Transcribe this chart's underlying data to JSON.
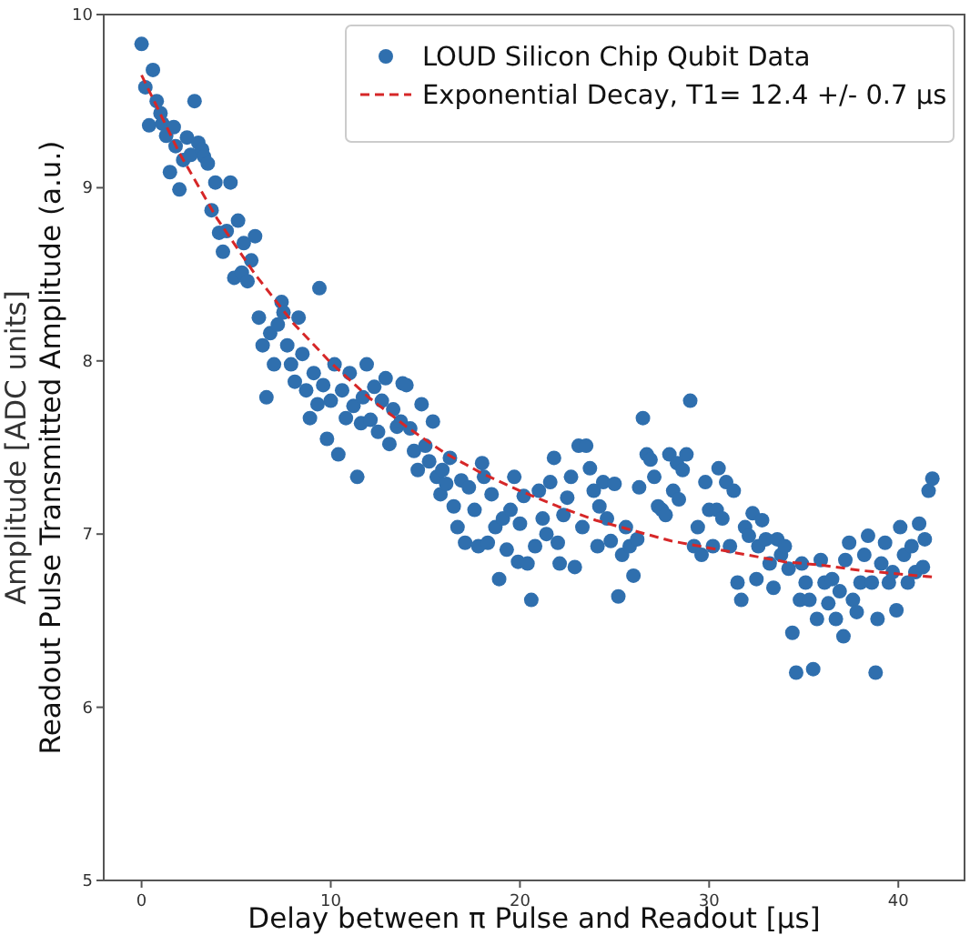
{
  "chart_data": {
    "type": "scatter",
    "xlabel": "Delay between π Pulse and Readout [µs]",
    "ylabel": "Readout Pulse Transmitted Amplitude (a.u.)",
    "annotations": [
      "Amplitude [ADC units]"
    ],
    "xlim": [
      -2,
      43.5
    ],
    "ylim": [
      5,
      10
    ],
    "xticks": [
      0,
      10,
      20,
      30,
      40
    ],
    "yticks": [
      5,
      6,
      7,
      8,
      9,
      10
    ],
    "grid": false,
    "legend": "top right",
    "series": [
      {
        "name": "LOUD Silicon Chip Qubit Data",
        "marker": "circle",
        "color": "#2f6fae",
        "x": [
          0.0,
          0.2,
          0.4,
          0.6,
          0.8,
          1.0,
          1.1,
          1.3,
          1.5,
          1.7,
          1.8,
          2.0,
          2.2,
          2.4,
          2.6,
          2.8,
          3.0,
          3.2,
          3.3,
          3.5,
          3.7,
          3.9,
          4.1,
          4.3,
          4.5,
          4.7,
          4.9,
          5.1,
          5.3,
          5.4,
          5.6,
          5.8,
          6.0,
          6.2,
          6.4,
          6.6,
          6.8,
          7.0,
          7.2,
          7.4,
          7.5,
          7.7,
          7.9,
          8.1,
          8.3,
          8.5,
          8.7,
          8.9,
          9.1,
          9.3,
          9.4,
          9.6,
          9.8,
          10.0,
          10.2,
          10.4,
          10.6,
          10.8,
          11.0,
          11.2,
          11.4,
          11.6,
          11.7,
          11.9,
          12.1,
          12.3,
          12.5,
          12.7,
          12.9,
          13.1,
          13.3,
          13.5,
          13.7,
          13.8,
          14.0,
          14.2,
          14.4,
          14.6,
          14.8,
          15.0,
          15.2,
          15.4,
          15.6,
          15.8,
          15.9,
          16.1,
          16.3,
          16.5,
          16.7,
          16.9,
          17.1,
          17.3,
          17.6,
          17.8,
          18.0,
          18.1,
          18.3,
          18.5,
          18.7,
          18.9,
          19.1,
          19.3,
          19.5,
          19.7,
          19.9,
          20.0,
          20.2,
          20.4,
          20.6,
          20.8,
          21.0,
          21.2,
          21.4,
          21.6,
          21.8,
          22.0,
          22.1,
          22.3,
          22.5,
          22.7,
          22.9,
          23.1,
          23.3,
          23.5,
          23.7,
          23.9,
          24.1,
          24.2,
          24.4,
          24.6,
          24.8,
          25.0,
          25.2,
          25.4,
          25.6,
          25.8,
          26.0,
          26.2,
          26.3,
          26.5,
          26.7,
          26.9,
          27.1,
          27.3,
          27.5,
          27.7,
          27.9,
          28.1,
          28.3,
          28.4,
          28.6,
          28.8,
          29.0,
          29.2,
          29.4,
          29.6,
          29.8,
          30.0,
          30.2,
          30.4,
          30.5,
          30.7,
          30.9,
          31.1,
          31.3,
          31.5,
          31.7,
          31.9,
          32.1,
          32.3,
          32.5,
          32.6,
          32.8,
          33.0,
          33.2,
          33.4,
          33.6,
          33.8,
          34.0,
          34.2,
          34.4,
          34.6,
          34.8,
          34.9,
          35.1,
          35.3,
          35.5,
          35.7,
          35.9,
          36.1,
          36.3,
          36.5,
          36.7,
          36.9,
          37.1,
          37.2,
          37.4,
          37.6,
          37.8,
          38.0,
          38.2,
          38.4,
          38.6,
          38.8,
          38.9,
          39.1,
          39.3,
          39.5,
          39.7,
          39.9,
          40.1,
          40.3,
          40.5,
          40.7,
          40.9,
          41.1,
          41.3,
          41.4,
          41.6,
          41.8
        ],
        "values": [
          9.83,
          9.58,
          9.36,
          9.68,
          9.5,
          9.43,
          9.37,
          9.3,
          9.09,
          9.35,
          9.24,
          8.99,
          9.16,
          9.29,
          9.19,
          9.5,
          9.26,
          9.22,
          9.18,
          9.14,
          8.87,
          9.03,
          8.74,
          8.63,
          8.75,
          9.03,
          8.48,
          8.81,
          8.51,
          8.68,
          8.46,
          8.58,
          8.72,
          8.25,
          8.09,
          7.79,
          8.16,
          7.98,
          8.21,
          8.34,
          8.28,
          8.09,
          7.98,
          7.88,
          8.25,
          8.04,
          7.83,
          7.67,
          7.93,
          7.75,
          8.42,
          7.86,
          7.55,
          7.77,
          7.98,
          7.46,
          7.83,
          7.67,
          7.93,
          7.74,
          7.33,
          7.64,
          7.79,
          7.98,
          7.66,
          7.85,
          7.59,
          7.77,
          7.9,
          7.52,
          7.72,
          7.62,
          7.65,
          7.87,
          7.86,
          7.61,
          7.48,
          7.37,
          7.75,
          7.51,
          7.42,
          7.65,
          7.33,
          7.23,
          7.37,
          7.29,
          7.44,
          7.16,
          7.04,
          7.31,
          6.95,
          7.27,
          7.14,
          6.93,
          7.41,
          7.33,
          6.95,
          7.23,
          7.04,
          6.74,
          7.09,
          6.91,
          7.14,
          7.33,
          6.84,
          7.06,
          7.22,
          6.83,
          6.62,
          6.93,
          7.25,
          7.09,
          7.0,
          7.3,
          7.44,
          6.95,
          6.83,
          7.11,
          7.21,
          7.33,
          6.81,
          7.51,
          7.04,
          7.51,
          7.38,
          7.25,
          6.93,
          7.16,
          7.3,
          7.09,
          6.96,
          7.29,
          6.64,
          6.88,
          7.04,
          6.93,
          6.76,
          6.97,
          7.27,
          7.67,
          7.46,
          7.43,
          7.33,
          7.16,
          7.14,
          7.11,
          7.46,
          7.25,
          7.41,
          7.2,
          7.37,
          7.46,
          7.77,
          6.93,
          7.04,
          6.88,
          7.3,
          7.14,
          6.93,
          7.14,
          7.38,
          7.09,
          7.3,
          6.93,
          7.25,
          6.72,
          6.62,
          7.04,
          6.99,
          7.12,
          6.74,
          6.93,
          7.08,
          6.97,
          6.83,
          6.69,
          6.97,
          6.88,
          6.93,
          6.8,
          6.43,
          6.2,
          6.62,
          6.83,
          6.72,
          6.62,
          6.22,
          6.51,
          6.85,
          6.72,
          6.6,
          6.74,
          6.51,
          6.67,
          6.41,
          6.85,
          6.95,
          6.62,
          6.55,
          6.72,
          6.88,
          6.99,
          6.72,
          6.2,
          6.51,
          6.83,
          6.95,
          6.72,
          6.78,
          6.56,
          7.04,
          6.88,
          6.72,
          6.93,
          6.78,
          7.06,
          6.81,
          6.97,
          7.25,
          7.32
        ]
      },
      {
        "name": "Exponential Decay, T1= 12.4 +/- 0.7 µs",
        "type": "line",
        "marker": "none",
        "line_style": "dashed",
        "color": "#d62728",
        "x": [
          0,
          2,
          4,
          6,
          8,
          10,
          12,
          14,
          16,
          18,
          20,
          22,
          24,
          26,
          28,
          30,
          32,
          34,
          36,
          38,
          40,
          42
        ],
        "values": [
          9.65,
          9.2,
          8.82,
          8.5,
          8.22,
          7.99,
          7.79,
          7.62,
          7.47,
          7.35,
          7.25,
          7.16,
          7.08,
          7.02,
          6.96,
          6.92,
          6.88,
          6.84,
          6.82,
          6.79,
          6.77,
          6.75
        ]
      }
    ]
  }
}
